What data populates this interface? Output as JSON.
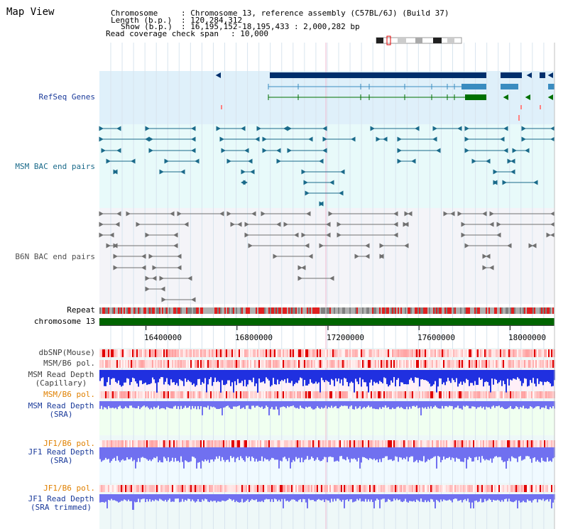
{
  "page": {
    "title": "Map View"
  },
  "header": {
    "chromosome_label": "Chromosome",
    "chromosome_value": ": Chromosome 13, reference assembly (C57BL/6J) (Build 37)",
    "length_label": "Length (b.p.)",
    "length_value": ": 120,284,312",
    "show_label": "Show (b.p.)",
    "show_value": ": 16,195,152-18,195,433 : 2,000,282 bp",
    "coverage_label": "Read coverage check span",
    "coverage_value": ": 10,000"
  },
  "tracks": {
    "refseq": "RefSeq Genes",
    "msm_bac": "MSM BAC end pairs",
    "b6n_bac": "B6N BAC end pairs",
    "repeat": "Repeat",
    "chromosome": "chromosome 13",
    "dbsnp": "dbSNP(Mouse)",
    "msm_b6_pol_1": "MSM/B6 pol.",
    "msm_depth_cap_1": "MSM Read Depth",
    "msm_depth_cap_2": "(Capillary)",
    "msm_b6_pol_2": "MSM/B6 pol.",
    "msm_depth_sra_1": "MSM Read Depth",
    "msm_depth_sra_2": "(SRA)",
    "jf1_b6_pol_1": "JF1/B6 pol.",
    "jf1_depth_sra_1": "JF1 Read Depth",
    "jf1_depth_sra_2": "(SRA)",
    "jf1_b6_pol_2": "JF1/B6 pol.",
    "jf1_depth_trim_1": "JF1 Read Depth",
    "jf1_depth_trim_2": "(SRA trimmed)"
  },
  "axis": {
    "ticks": [
      "16400000",
      "16800000",
      "17200000",
      "17600000",
      "18000000"
    ],
    "tick_values": [
      16400000,
      16800000,
      17200000,
      17600000,
      18000000
    ],
    "range": [
      16195152,
      18195433
    ]
  },
  "colors": {
    "refseq_dark": "#002f6c",
    "refseq_mid": "#3a8cc0",
    "refseq_green": "#007000",
    "msm_bac": "#1a6a8a",
    "b6n_bac": "#707070",
    "repeat_red": "#e02020",
    "chromosome_green": "#006400",
    "depth_blue": "#2030e0",
    "depth_light": "#7070f0",
    "msm_label": "#1a3a9a",
    "jf1_label": "#e08000"
  }
}
